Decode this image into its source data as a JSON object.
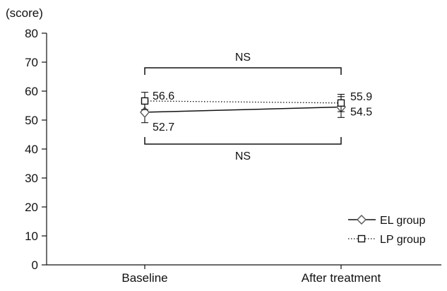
{
  "chart_data": {
    "type": "line",
    "unit_label": "(score)",
    "categories": [
      "Baseline",
      "After treatment"
    ],
    "ylim": [
      0,
      80
    ],
    "yticks": [
      0,
      10,
      20,
      30,
      40,
      50,
      60,
      70,
      80
    ],
    "series": [
      {
        "name": "EL group",
        "values": [
          52.7,
          54.5
        ],
        "error": [
          3.6,
          3.6
        ],
        "marker": "diamond",
        "line": "solid",
        "color": "#111111"
      },
      {
        "name": "LP group",
        "values": [
          56.6,
          55.9
        ],
        "error": [
          3.0,
          3.0
        ],
        "marker": "square",
        "line": "dotted",
        "color": "#111111"
      }
    ],
    "annotations": [
      {
        "text": "NS",
        "position": "above"
      },
      {
        "text": "NS",
        "position": "below"
      }
    ],
    "legend_position": "bottom-right",
    "grid": false
  }
}
